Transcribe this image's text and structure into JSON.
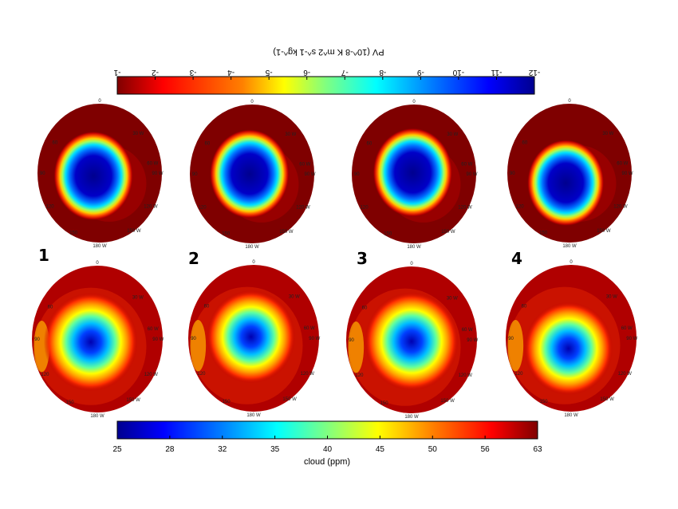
{
  "chart_data": [
    {
      "type": "heatmap",
      "description_role": "top row: polar stereographic maps of potential vorticity",
      "colorbar": {
        "label": "PV (10^-8 K m^2 s^-1 kg^-1)",
        "ticks": [
          "-1",
          "-2",
          "-3",
          "-4",
          "-5",
          "-6",
          "-7",
          "-8",
          "-9",
          "-10",
          "-11",
          "-12"
        ],
        "range": [
          -1,
          -12
        ],
        "orientation": "rotated 180°, placed above maps",
        "colormap": "jet"
      },
      "panels": [
        {
          "number": "1",
          "vortex_center": [
            0.45,
            0.52
          ],
          "vortex_radius": 0.32
        },
        {
          "number": "2",
          "vortex_center": [
            0.48,
            0.5
          ],
          "vortex_radius": 0.32
        },
        {
          "number": "3",
          "vortex_center": [
            0.49,
            0.49
          ],
          "vortex_radius": 0.32
        },
        {
          "number": "4",
          "vortex_center": [
            0.47,
            0.57
          ],
          "vortex_radius": 0.31
        }
      ]
    },
    {
      "type": "heatmap",
      "description_role": "bottom row: polar stereographic maps of cloud concentration",
      "colorbar": {
        "label": "cloud (ppm)",
        "ticks": [
          "25",
          "28",
          "32",
          "35",
          "40",
          "45",
          "50",
          "56",
          "63"
        ],
        "range": [
          25,
          63
        ],
        "orientation": "horizontal, below maps",
        "colormap": "jet"
      },
      "panels": [
        {
          "number": "1",
          "vortex_center": [
            0.45,
            0.52
          ],
          "vortex_radius": 0.36
        },
        {
          "number": "2",
          "vortex_center": [
            0.48,
            0.49
          ],
          "vortex_radius": 0.34
        },
        {
          "number": "3",
          "vortex_center": [
            0.5,
            0.51
          ],
          "vortex_radius": 0.36
        },
        {
          "number": "4",
          "vortex_center": [
            0.48,
            0.57
          ],
          "vortex_radius": 0.34
        }
      ]
    }
  ],
  "map_labels": {
    "lon_top": [
      "0",
      "30 W",
      "60 W",
      "90 W",
      "120 W",
      "150 W",
      "180 W"
    ],
    "lon_side": [
      "300",
      "60",
      "90",
      "120",
      "150"
    ]
  },
  "colors": {
    "background": "#ffffff",
    "map_edge": "#7f0000",
    "jet_stops": [
      "#00008f",
      "#0000ff",
      "#0080ff",
      "#00ffff",
      "#80ff80",
      "#ffff00",
      "#ff8000",
      "#ff0000",
      "#800000"
    ]
  }
}
